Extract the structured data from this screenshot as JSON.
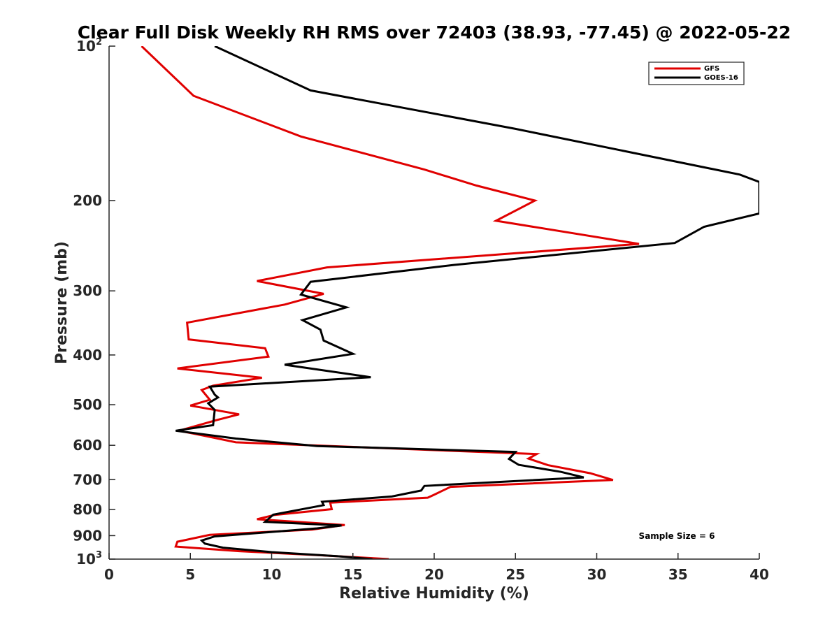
{
  "chart_data": {
    "type": "line",
    "title": "Clear Full Disk Weekly RH RMS over 72403 (38.93, -77.45) @ 2022-05-22",
    "xlabel": "Relative Humidity (%)",
    "ylabel": "Pressure (mb)",
    "xlim": [
      0,
      40
    ],
    "ylim": [
      100,
      1000
    ],
    "y_scale": "log",
    "y_reversed": true,
    "xticks": [
      "0",
      "5",
      "10",
      "15",
      "20",
      "25",
      "30",
      "35",
      "40"
    ],
    "yticks": [
      {
        "value": 100,
        "base": "10",
        "exp": "2"
      },
      {
        "value": 200,
        "base": "200",
        "exp": ""
      },
      {
        "value": 300,
        "base": "300",
        "exp": ""
      },
      {
        "value": 400,
        "base": "400",
        "exp": ""
      },
      {
        "value": 500,
        "base": "500",
        "exp": ""
      },
      {
        "value": 600,
        "base": "600",
        "exp": ""
      },
      {
        "value": 700,
        "base": "700",
        "exp": ""
      },
      {
        "value": 800,
        "base": "800",
        "exp": ""
      },
      {
        "value": 900,
        "base": "900",
        "exp": ""
      },
      {
        "value": 1000,
        "base": "10",
        "exp": "3"
      }
    ],
    "legend_position": "top-right",
    "annotation": "Sample Size = 6",
    "series": [
      {
        "name": "GFS",
        "color": "#e00000",
        "points": [
          [
            2.0,
            100
          ],
          [
            5.2,
            125
          ],
          [
            11.8,
            150
          ],
          [
            19.4,
            174
          ],
          [
            22.6,
            187
          ],
          [
            26.2,
            200
          ],
          [
            23.8,
            219
          ],
          [
            32.6,
            243
          ],
          [
            13.4,
            270
          ],
          [
            9.1,
            287
          ],
          [
            13.2,
            304
          ],
          [
            10.8,
            319
          ],
          [
            4.8,
            346
          ],
          [
            4.9,
            373
          ],
          [
            9.6,
            388
          ],
          [
            9.8,
            403
          ],
          [
            4.2,
            425
          ],
          [
            9.4,
            443
          ],
          [
            6.4,
            459
          ],
          [
            5.7,
            468
          ],
          [
            6.2,
            489
          ],
          [
            5.0,
            502
          ],
          [
            8.0,
            522
          ],
          [
            6.6,
            536
          ],
          [
            4.3,
            562
          ],
          [
            6.0,
            576
          ],
          [
            7.8,
            592
          ],
          [
            18.2,
            610
          ],
          [
            26.3,
            624
          ],
          [
            25.8,
            637
          ],
          [
            27.0,
            656
          ],
          [
            29.6,
            680
          ],
          [
            31.0,
            701
          ],
          [
            21.0,
            723
          ],
          [
            20.0,
            749
          ],
          [
            19.6,
            759
          ],
          [
            13.6,
            776
          ],
          [
            13.7,
            799
          ],
          [
            10.2,
            820
          ],
          [
            9.1,
            836
          ],
          [
            14.5,
            858
          ],
          [
            12.5,
            876
          ],
          [
            6.2,
            897
          ],
          [
            4.2,
            925
          ],
          [
            4.1,
            945
          ],
          [
            8.0,
            965
          ],
          [
            13.0,
            983
          ],
          [
            17.2,
            1000
          ]
        ]
      },
      {
        "name": "GOES-16",
        "color": "#000000",
        "points": [
          [
            6.5,
            100
          ],
          [
            12.4,
            122
          ],
          [
            25.0,
            145
          ],
          [
            38.8,
            178
          ],
          [
            40.0,
            184
          ],
          [
            40.0,
            212
          ],
          [
            36.6,
            225
          ],
          [
            34.8,
            242
          ],
          [
            21.2,
            267
          ],
          [
            12.4,
            288
          ],
          [
            11.8,
            305
          ],
          [
            14.6,
            323
          ],
          [
            11.9,
            342
          ],
          [
            13.0,
            357
          ],
          [
            13.2,
            375
          ],
          [
            15.0,
            398
          ],
          [
            10.8,
            418
          ],
          [
            16.1,
            442
          ],
          [
            6.2,
            461
          ],
          [
            6.5,
            478
          ],
          [
            6.7,
            484
          ],
          [
            6.1,
            497
          ],
          [
            6.5,
            512
          ],
          [
            6.4,
            548
          ],
          [
            4.1,
            562
          ],
          [
            7.8,
            582
          ],
          [
            12.8,
            602
          ],
          [
            25.0,
            618
          ],
          [
            24.6,
            638
          ],
          [
            25.2,
            655
          ],
          [
            27.8,
            676
          ],
          [
            29.2,
            693
          ],
          [
            19.4,
            720
          ],
          [
            19.2,
            735
          ],
          [
            17.4,
            755
          ],
          [
            13.1,
            773
          ],
          [
            13.2,
            785
          ],
          [
            10.1,
            819
          ],
          [
            9.6,
            846
          ],
          [
            14.3,
            860
          ],
          [
            12.8,
            871
          ],
          [
            6.5,
            903
          ],
          [
            5.7,
            920
          ],
          [
            5.9,
            933
          ],
          [
            7.0,
            950
          ],
          [
            10.0,
            969
          ],
          [
            14.0,
            987
          ],
          [
            16.2,
            1000
          ]
        ]
      }
    ]
  }
}
